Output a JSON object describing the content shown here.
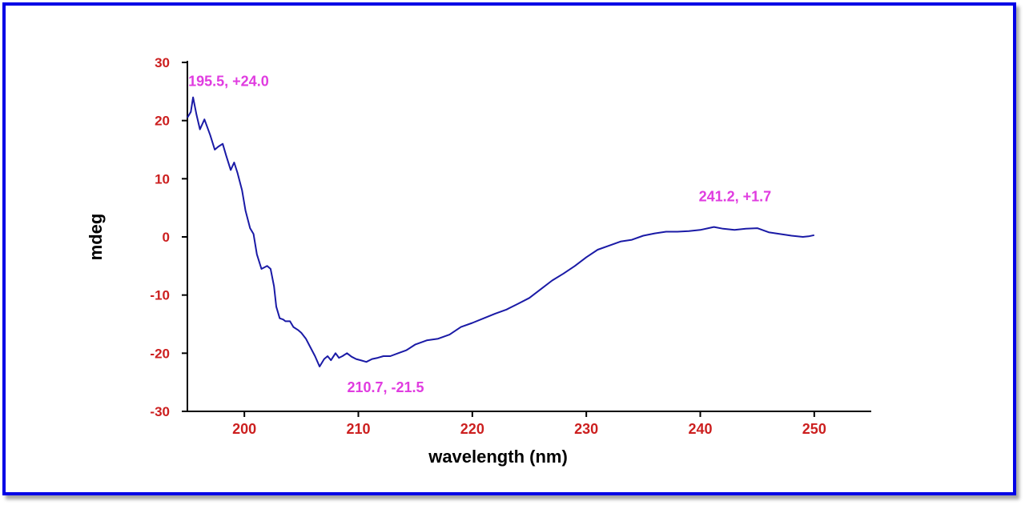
{
  "colors": {
    "frame": "#0000e6",
    "line": "#1a1aa6",
    "tick_labels": "#cc1f1f",
    "annotations": "#e03ce0",
    "axes": "#000000"
  },
  "chart_data": {
    "type": "line",
    "xlabel": "wavelength (nm)",
    "ylabel": "mdeg",
    "xlim": [
      195,
      255
    ],
    "ylim": [
      -30,
      30
    ],
    "x_ticks": [
      200,
      210,
      220,
      230,
      240,
      250
    ],
    "y_ticks": [
      -30,
      -20,
      -10,
      0,
      10,
      20,
      30
    ],
    "x_tick_labels": [
      "200",
      "210",
      "220",
      "230",
      "240",
      "250"
    ],
    "y_tick_labels": [
      "-30",
      "-20",
      "-10",
      "0",
      "10",
      "20",
      "30"
    ],
    "grid": false,
    "series": [
      {
        "x": [
          195.0,
          195.3,
          195.5,
          195.8,
          196.1,
          196.5,
          197.0,
          197.4,
          197.7,
          198.1,
          198.4,
          198.8,
          199.1,
          199.4,
          199.8,
          200.1,
          200.5,
          200.8,
          201.1,
          201.5,
          201.7,
          202.0,
          202.3,
          202.6,
          202.8,
          203.1,
          203.4,
          203.6,
          204.0,
          204.3,
          204.7,
          205.0,
          205.4,
          205.8,
          206.2,
          206.6,
          207.0,
          207.3,
          207.6,
          208.0,
          208.3,
          208.6,
          209.0,
          209.4,
          209.8,
          210.2,
          210.7,
          211.2,
          211.7,
          212.2,
          212.8,
          213.5,
          214.2,
          215.0,
          216.0,
          217.0,
          218.0,
          219.0,
          220.0,
          221.0,
          222.0,
          223.0,
          224.0,
          225.0,
          226.0,
          227.0,
          228.0,
          229.0,
          230.0,
          231.0,
          232.0,
          233.0,
          234.0,
          235.0,
          236.0,
          237.0,
          238.0,
          239.0,
          240.0,
          241.2,
          242.0,
          243.0,
          244.0,
          245.0,
          246.0,
          247.0,
          248.0,
          249.0,
          249.5,
          250.0
        ],
        "y": [
          20.5,
          21.5,
          24.0,
          21.0,
          18.5,
          20.2,
          17.5,
          15.0,
          15.5,
          16.0,
          14.0,
          11.5,
          12.8,
          11.0,
          8.0,
          4.5,
          1.5,
          0.5,
          -3.0,
          -5.5,
          -5.3,
          -5.0,
          -5.5,
          -8.5,
          -12.0,
          -14.0,
          -14.2,
          -14.5,
          -14.5,
          -15.5,
          -16.0,
          -16.5,
          -17.5,
          -19.0,
          -20.5,
          -22.3,
          -21.0,
          -20.5,
          -21.2,
          -20.0,
          -20.8,
          -20.5,
          -20.0,
          -20.6,
          -21.0,
          -21.2,
          -21.5,
          -21.0,
          -20.8,
          -20.5,
          -20.5,
          -20.0,
          -19.5,
          -18.5,
          -17.8,
          -17.5,
          -16.8,
          -15.5,
          -14.8,
          -14.0,
          -13.2,
          -12.5,
          -11.5,
          -10.5,
          -9.0,
          -7.5,
          -6.3,
          -5.0,
          -3.5,
          -2.2,
          -1.5,
          -0.8,
          -0.5,
          0.2,
          0.6,
          0.9,
          0.9,
          1.0,
          1.2,
          1.7,
          1.4,
          1.2,
          1.4,
          1.5,
          0.8,
          0.5,
          0.2,
          0.0,
          0.1,
          0.3
        ]
      }
    ],
    "annotations": [
      {
        "text": "195.5, +24.0",
        "x": 195.5,
        "y": 24.0
      },
      {
        "text": "210.7, -21.5",
        "x": 210.7,
        "y": -21.5
      },
      {
        "text": "241.2, +1.7",
        "x": 241.2,
        "y": 1.7
      }
    ]
  }
}
